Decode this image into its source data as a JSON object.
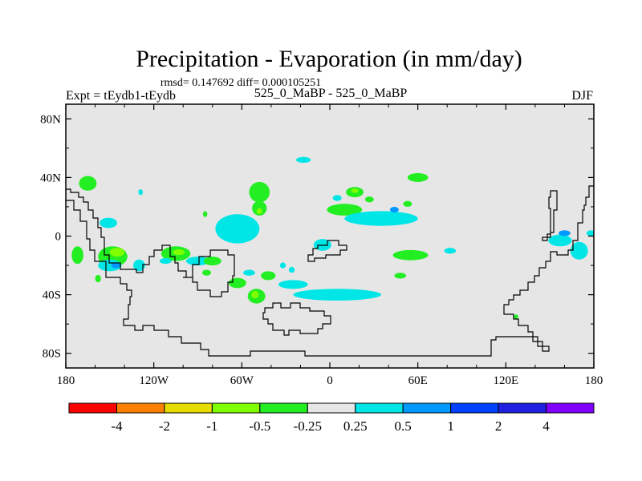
{
  "chart_data": {
    "type": "heatmap",
    "title": "Precipitation - Evaporation (in mm/day)",
    "stats_line": "rmsd= 0.147692 diff= 0.000105251",
    "experiment_label": "Expt = tEydb1-tEydb",
    "comparison_label": "525_0_MaBP - 525_0_MaBP",
    "season_label": "DJF",
    "x_axis": {
      "range": [
        -180,
        180
      ],
      "ticks": [
        -180,
        -120,
        -60,
        0,
        60,
        120,
        180
      ],
      "tick_labels": [
        "180",
        "120W",
        "60W",
        "0",
        "60E",
        "120E",
        "180"
      ]
    },
    "y_axis": {
      "range": [
        -90,
        90
      ],
      "ticks": [
        80,
        40,
        0,
        -40,
        -80
      ],
      "tick_labels": [
        "80N",
        "40N",
        "0",
        "40S",
        "80S"
      ]
    },
    "background_color": "#e6e6e6",
    "colorbar": {
      "levels": [
        "-4",
        "-2",
        "-1",
        "-0.5",
        "-0.25",
        "0.25",
        "0.5",
        "1",
        "2",
        "4"
      ],
      "colors": [
        "#ff0000",
        "#ff8000",
        "#e6dc00",
        "#80ff00",
        "#22ee22",
        "#e6e6e6",
        "#00e6e6",
        "#0099ff",
        "#0040ff",
        "#2020e0",
        "#8000ff"
      ]
    },
    "regions": [
      {
        "lon": -165,
        "lat": 36,
        "rlon": 6,
        "rlat": 5,
        "color": "#22ee22"
      },
      {
        "lon": -129,
        "lat": 30,
        "rlon": 1.5,
        "rlat": 2,
        "color": "#00e6e6"
      },
      {
        "lon": -85,
        "lat": 15,
        "rlon": 1.5,
        "rlat": 2,
        "color": "#22ee22"
      },
      {
        "lon": -151,
        "lat": 9,
        "rlon": 6,
        "rlat": 3.5,
        "color": "#00e6e6"
      },
      {
        "lon": -172,
        "lat": -13,
        "rlon": 4,
        "rlat": 6,
        "color": "#22ee22"
      },
      {
        "lon": -148,
        "lat": -14,
        "rlon": 10,
        "rlat": 7,
        "color": "#22ee22"
      },
      {
        "lon": -145,
        "lat": -11,
        "rlon": 5,
        "rlat": 3,
        "color": "#80ff00"
      },
      {
        "lon": -150,
        "lat": -20,
        "rlon": 8,
        "rlat": 4,
        "color": "#00e6e6"
      },
      {
        "lon": -146,
        "lat": -20,
        "rlon": 3,
        "rlat": 2,
        "color": "#0099ff"
      },
      {
        "lon": -130,
        "lat": -20,
        "rlon": 4,
        "rlat": 4,
        "color": "#00e6e6"
      },
      {
        "lon": -158,
        "lat": -29,
        "rlon": 2,
        "rlat": 2.5,
        "color": "#22ee22"
      },
      {
        "lon": -105,
        "lat": -12,
        "rlon": 10,
        "rlat": 5,
        "color": "#22ee22"
      },
      {
        "lon": -103,
        "lat": -11,
        "rlon": 4,
        "rlat": 2,
        "color": "#80ff00"
      },
      {
        "lon": -90,
        "lat": -17,
        "rlon": 8,
        "rlat": 3,
        "color": "#00e6e6"
      },
      {
        "lon": -112,
        "lat": -17,
        "rlon": 4,
        "rlat": 2,
        "color": "#00e6e6"
      },
      {
        "lon": -63,
        "lat": 5,
        "rlon": 15,
        "rlat": 10,
        "color": "#00e6e6"
      },
      {
        "lon": -80,
        "lat": -17,
        "rlon": 6,
        "rlat": 3,
        "color": "#22ee22"
      },
      {
        "lon": -84,
        "lat": -25,
        "rlon": 3,
        "rlat": 2,
        "color": "#22ee22"
      },
      {
        "lon": -63,
        "lat": -32,
        "rlon": 6,
        "rlat": 3.5,
        "color": "#22ee22"
      },
      {
        "lon": -55,
        "lat": -25,
        "rlon": 4,
        "rlat": 2,
        "color": "#00e6e6"
      },
      {
        "lon": -50,
        "lat": -41,
        "rlon": 6,
        "rlat": 5,
        "color": "#22ee22"
      },
      {
        "lon": -51,
        "lat": -40,
        "rlon": 2.5,
        "rlat": 2.5,
        "color": "#80ff00"
      },
      {
        "lon": -42,
        "lat": -27,
        "rlon": 5,
        "rlat": 3,
        "color": "#22ee22"
      },
      {
        "lon": -25,
        "lat": -33,
        "rlon": 10,
        "rlat": 3,
        "color": "#00e6e6"
      },
      {
        "lon": 5,
        "lat": -40,
        "rlon": 30,
        "rlat": 4,
        "color": "#00e6e6"
      },
      {
        "lon": -48,
        "lat": 30,
        "rlon": 7,
        "rlat": 7,
        "color": "#22ee22"
      },
      {
        "lon": -48,
        "lat": 19,
        "rlon": 5,
        "rlat": 5,
        "color": "#22ee22"
      },
      {
        "lon": -48,
        "lat": 17,
        "rlon": 2,
        "rlat": 2,
        "color": "#80ff00"
      },
      {
        "lon": -18,
        "lat": 52,
        "rlon": 5,
        "rlat": 2,
        "color": "#00e6e6"
      },
      {
        "lon": -32,
        "lat": -20,
        "rlon": 2,
        "rlat": 2,
        "color": "#00e6e6"
      },
      {
        "lon": -26,
        "lat": -23,
        "rlon": 2,
        "rlat": 2,
        "color": "#00e6e6"
      },
      {
        "lon": -5,
        "lat": -6,
        "rlon": 6,
        "rlat": 4,
        "color": "#00e6e6"
      },
      {
        "lon": 5,
        "lat": 26,
        "rlon": 3,
        "rlat": 2,
        "color": "#00e6e6"
      },
      {
        "lon": 10,
        "lat": 18,
        "rlon": 12,
        "rlat": 4,
        "color": "#22ee22"
      },
      {
        "lon": 17,
        "lat": 30,
        "rlon": 6,
        "rlat": 3.5,
        "color": "#22ee22"
      },
      {
        "lon": 17,
        "lat": 31,
        "rlon": 2.5,
        "rlat": 1.5,
        "color": "#80ff00"
      },
      {
        "lon": 27,
        "lat": 25,
        "rlon": 3,
        "rlat": 2,
        "color": "#22ee22"
      },
      {
        "lon": 35,
        "lat": 12,
        "rlon": 25,
        "rlat": 5,
        "color": "#00e6e6"
      },
      {
        "lon": 44,
        "lat": 18,
        "rlon": 3,
        "rlat": 2,
        "color": "#0099ff"
      },
      {
        "lon": 53,
        "lat": 22,
        "rlon": 3,
        "rlat": 2,
        "color": "#22ee22"
      },
      {
        "lon": 60,
        "lat": 40,
        "rlon": 7,
        "rlat": 3,
        "color": "#22ee22"
      },
      {
        "lon": 55,
        "lat": -13,
        "rlon": 12,
        "rlat": 3.5,
        "color": "#22ee22"
      },
      {
        "lon": 48,
        "lat": -27,
        "rlon": 4,
        "rlat": 2,
        "color": "#22ee22"
      },
      {
        "lon": 82,
        "lat": -10,
        "rlon": 4,
        "rlat": 2,
        "color": "#00e6e6"
      },
      {
        "lon": 157,
        "lat": -3,
        "rlon": 8,
        "rlat": 4,
        "color": "#00e6e6"
      },
      {
        "lon": 170,
        "lat": -10,
        "rlon": 6,
        "rlat": 6,
        "color": "#00e6e6"
      },
      {
        "lon": 160,
        "lat": 2,
        "rlon": 4,
        "rlat": 2,
        "color": "#0099ff"
      },
      {
        "lon": 178,
        "lat": 2,
        "rlon": 3,
        "rlat": 2,
        "color": "#00e6e6"
      },
      {
        "lon": 127,
        "lat": -55,
        "rlon": 1.5,
        "rlat": 1.5,
        "color": "#22ee22"
      }
    ]
  }
}
